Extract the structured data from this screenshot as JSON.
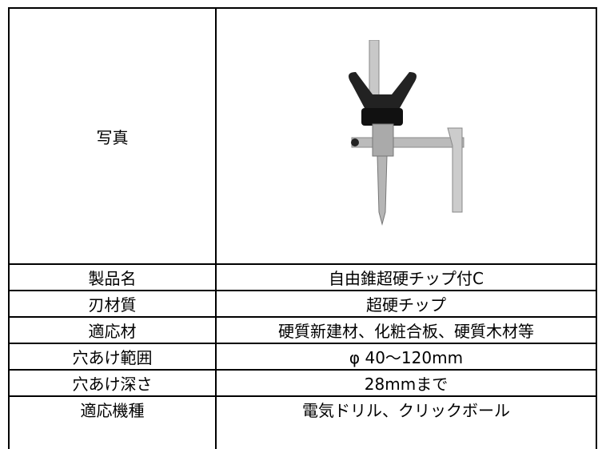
{
  "table": {
    "photo_label": "写真",
    "rows": [
      [
        "製品名",
        "自由錐超硬チップ付C"
      ],
      [
        "刃材質",
        "超硬チップ"
      ],
      [
        "適応材",
        "硬質新建材、化粧合板、硬質木材等"
      ],
      [
        "穴あけ範囲",
        "φ 40〜120mm"
      ],
      [
        "穴あけ深さ",
        "28mmまで"
      ],
      [
        "適応機種",
        "電気ドリル、クリックボール"
      ]
    ]
  }
}
